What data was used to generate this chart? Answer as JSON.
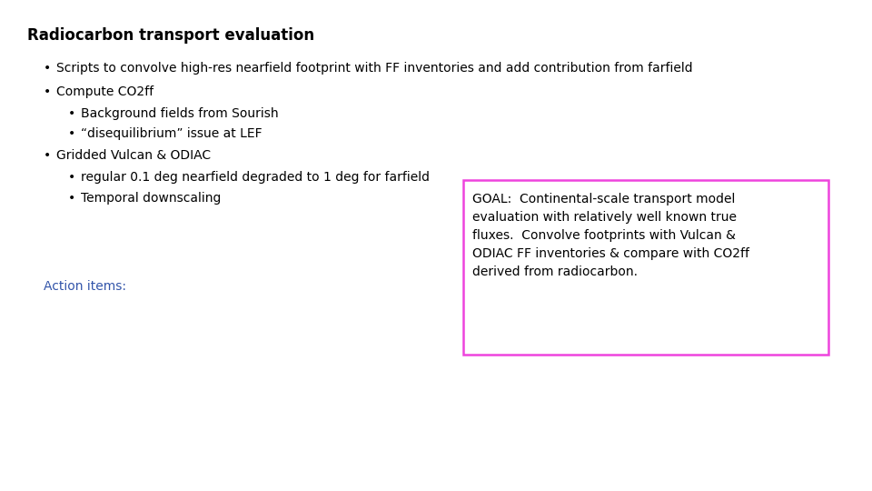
{
  "title": "Radiocarbon transport evaluation",
  "background_color": "#ffffff",
  "title_fontsize": 12,
  "title_font": "DejaVu Sans",
  "bullet1": "Scripts to convolve high-res nearfield footprint with FF inventories and add contribution from farfield",
  "bullet2": "Compute CO2ff",
  "sub_bullet2a": "Background fields from Sourish",
  "sub_bullet2b": "“disequilibrium” issue at LEF",
  "bullet3": "Gridded Vulcan & ODIAC",
  "sub_bullet3a": "regular 0.1 deg nearfield degraded to 1 deg for farfield",
  "sub_bullet3b": "Temporal downscaling",
  "action_label": "Action items:",
  "action_color": "#3355aa",
  "goal_text": "GOAL:  Continental-scale transport model\nevaluation with relatively well known true\nfluxes.  Convolve footprints with Vulcan &\nODIAC FF inventories & compare with CO2ff\nderived from radiocarbon.",
  "goal_box_color": "#ee44dd",
  "body_fontsize": 10,
  "sub_fontsize": 10,
  "font_family": "DejaVu Sans"
}
